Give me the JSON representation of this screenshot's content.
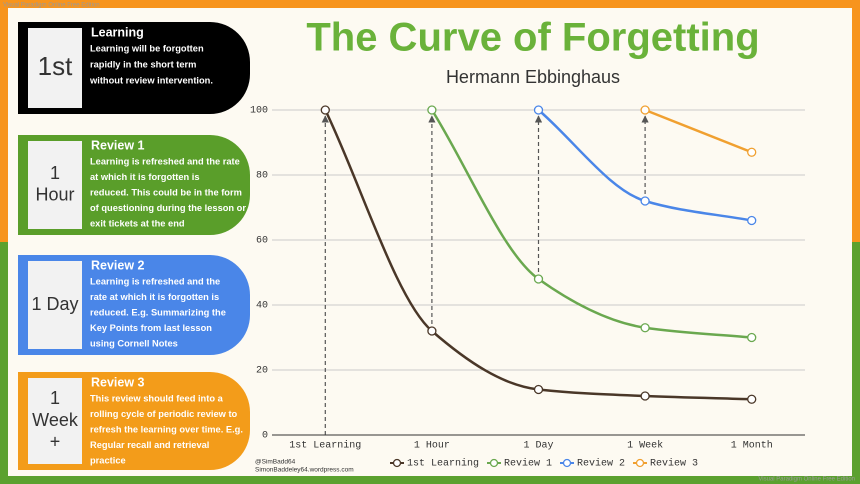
{
  "watermarks": [
    "Visual Paradigm Online Free Edition",
    "Visual Paradigm Online Free Edition"
  ],
  "panels": [
    {
      "badge": [
        "1st"
      ],
      "title": "Learning",
      "color": "#000000",
      "badge_size": 26,
      "lines": [
        "Learning will be forgotten",
        "rapidly in the short term",
        "without review intervention."
      ]
    },
    {
      "badge": [
        "1",
        "Hour"
      ],
      "title": "Review 1",
      "color": "#5a9e2a",
      "badge_size": 18,
      "lines": [
        "Learning is refreshed and the rate",
        "at which it is forgotten is",
        "reduced. This could be in the form",
        "of questioning during the lesson or",
        "exit tickets at the end"
      ]
    },
    {
      "badge": [
        "1 Day"
      ],
      "title": "Review 2",
      "color": "#4a86e8",
      "badge_size": 18,
      "lines": [
        "Learning is refreshed and the",
        "rate at which it is forgotten is",
        "reduced.  E.g. Summarizing the",
        "Key Points from last lesson",
        "using Cornell Notes"
      ]
    },
    {
      "badge": [
        "1",
        "Week",
        "+"
      ],
      "title": "Review 3",
      "color": "#f39c1a",
      "badge_size": 18,
      "lines": [
        "This review should feed into a",
        "rolling cycle of periodic review to",
        "refresh the learning over time.  E.g.",
        "Regular recall and retrieval",
        "practice"
      ]
    }
  ],
  "credits": [
    "@SimBadd64",
    "SimonBaddeley64.wordpress.com"
  ],
  "chart_data": {
    "type": "line",
    "title": "The Curve of Forgetting",
    "subtitle": "Hermann Ebbinghaus",
    "categories": [
      "1st Learning",
      "1 Hour",
      "1 Day",
      "1 Week",
      "1 Month"
    ],
    "series": [
      {
        "name": "1st Learning",
        "color": "#4a3728",
        "values": [
          100,
          32,
          14,
          12,
          11
        ]
      },
      {
        "name": "Review 1",
        "color": "#6aa84f",
        "values": [
          null,
          100,
          48,
          33,
          30
        ]
      },
      {
        "name": "Review 2",
        "color": "#4a86e8",
        "values": [
          null,
          null,
          100,
          72,
          66
        ]
      },
      {
        "name": "Review 3",
        "color": "#f0a030",
        "values": [
          null,
          null,
          null,
          100,
          87
        ]
      }
    ],
    "ylim": [
      0,
      100
    ],
    "yticks": [
      0,
      20,
      40,
      60,
      80,
      100
    ],
    "grid": true,
    "legend": "bottom"
  }
}
